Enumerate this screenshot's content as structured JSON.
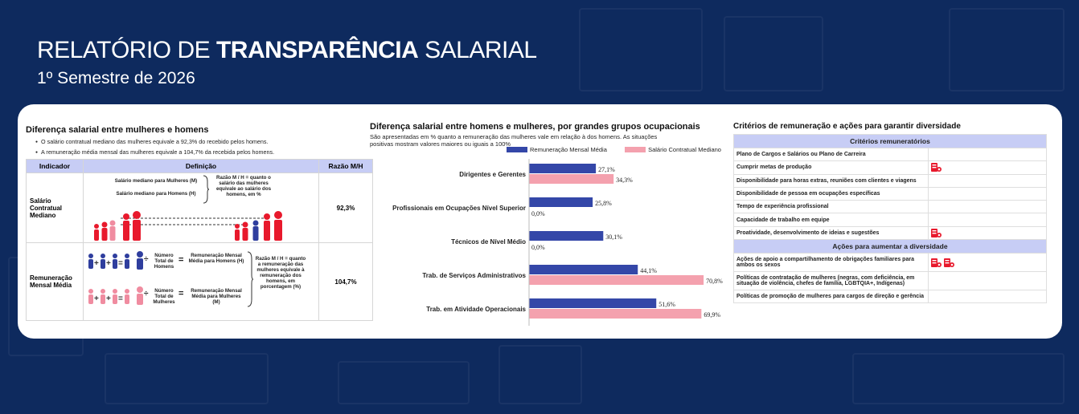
{
  "header": {
    "title_prefix": "RELATÓRIO DE ",
    "title_bold": "TRANSPARÊNCIA",
    "title_suffix": " SALARIAL",
    "subtitle": "1º Semestre de 2026"
  },
  "panel1": {
    "title": "Diferença salarial entre mulheres e homens",
    "bullets": [
      "O salário contratual mediano das mulheres equivale a 92,3% do recebido pelos homens.",
      "A remuneração média mensal das mulheres equivale a 104,7% da recebida pelos homens."
    ],
    "headers": [
      "Indicador",
      "Definição",
      "Razão M/H"
    ],
    "row1": {
      "indicator": "Salário Contratual Mediano",
      "label_m": "Salário mediano para Mulheres (M)",
      "label_h": "Salário mediano para Homens (H)",
      "explain": "Razão M / H = quanto o salário das mulheres equivale ao salário dos homens, em %",
      "ratio": "92,3%"
    },
    "row2": {
      "indicator": "Remuneração Mensal Média",
      "num_h": "Número Total de Homens",
      "rem_h": "Remuneração Mensal Média para Homens (H)",
      "num_m": "Número Total de Mulheres",
      "rem_m": "Remuneração Mensal Média para Mulheres (M)",
      "explain": "Razão M / H = quanto a remuneração das mulheres equivale à remuneração dos homens, em porcentagem (%)",
      "ratio": "104,7%"
    },
    "colors": {
      "male": "#2f3e9e",
      "female": "#e8192c",
      "female_light": "#f08ca0"
    }
  },
  "panel2": {
    "title": "Diferença salarial entre homens e mulheres, por grandes grupos ocupacionais",
    "subtitle": "São apresentadas em % quanto a remuneração das mulheres vale em relação à dos homens. As situações positivas mostram valores maiores ou iguais a 100%"
  },
  "chart_data": {
    "type": "bar",
    "orientation": "horizontal",
    "title": "Diferença salarial entre homens e mulheres, por grandes grupos ocupacionais",
    "categories": [
      "Dirigentes e Gerentes",
      "Profissionais em Ocupações Nível Superior",
      "Técnicos de Nível Médio",
      "Trab. de Serviços Administrativos",
      "Trab. em Atividade Operacionais"
    ],
    "series": [
      {
        "name": "Remuneração Mensal Média",
        "color": "#3447a8",
        "values": [
          27.1,
          25.8,
          30.1,
          44.1,
          51.6
        ],
        "labels": [
          "27,1%",
          "25,8%",
          "30,1%",
          "44,1%",
          "51,6%"
        ]
      },
      {
        "name": "Salário Contratual Mediano",
        "color": "#f4a1ae",
        "values": [
          34.3,
          0.0,
          0.0,
          70.8,
          69.9
        ],
        "labels": [
          "34,3%",
          "0,0%",
          "0,0%",
          "70,8%",
          "69,9%"
        ]
      }
    ],
    "xlim": [
      0,
      75
    ],
    "legend": "top"
  },
  "panel3": {
    "title": "Critérios de remuneração e ações para garantir diversidade",
    "section1": "Critérios remuneratórios",
    "criteria": [
      {
        "label": "Plano de Cargos e Salários ou Plano de Carreira",
        "icons": 0
      },
      {
        "label": "Cumprir metas de produção",
        "icons": 1
      },
      {
        "label": "Disponibilidade para horas extras, reuniões com clientes e viagens",
        "icons": 0
      },
      {
        "label": "Disponibilidade de pessoa em ocupações específicas",
        "icons": 0
      },
      {
        "label": "Tempo de experiência profissional",
        "icons": 0
      },
      {
        "label": "Capacidade de trabalho em equipe",
        "icons": 0
      },
      {
        "label": "Proatividade, desenvolvimento de ideias e sugestões",
        "icons": 1
      }
    ],
    "section2": "Ações para aumentar a diversidade",
    "actions": [
      {
        "label": "Ações de apoio a compartilhamento de obrigações familiares para ambos os sexos",
        "icons": 2
      },
      {
        "label": "Políticas de contratação de mulheres (negras, com deficiência, em situação de violência, chefes de família, LGBTQIA+, Indígenas)",
        "icons": 0
      },
      {
        "label": "Políticas de promoção de mulheres para cargos de direção e gerência",
        "icons": 0
      }
    ],
    "icon_color": "#e8192c"
  }
}
